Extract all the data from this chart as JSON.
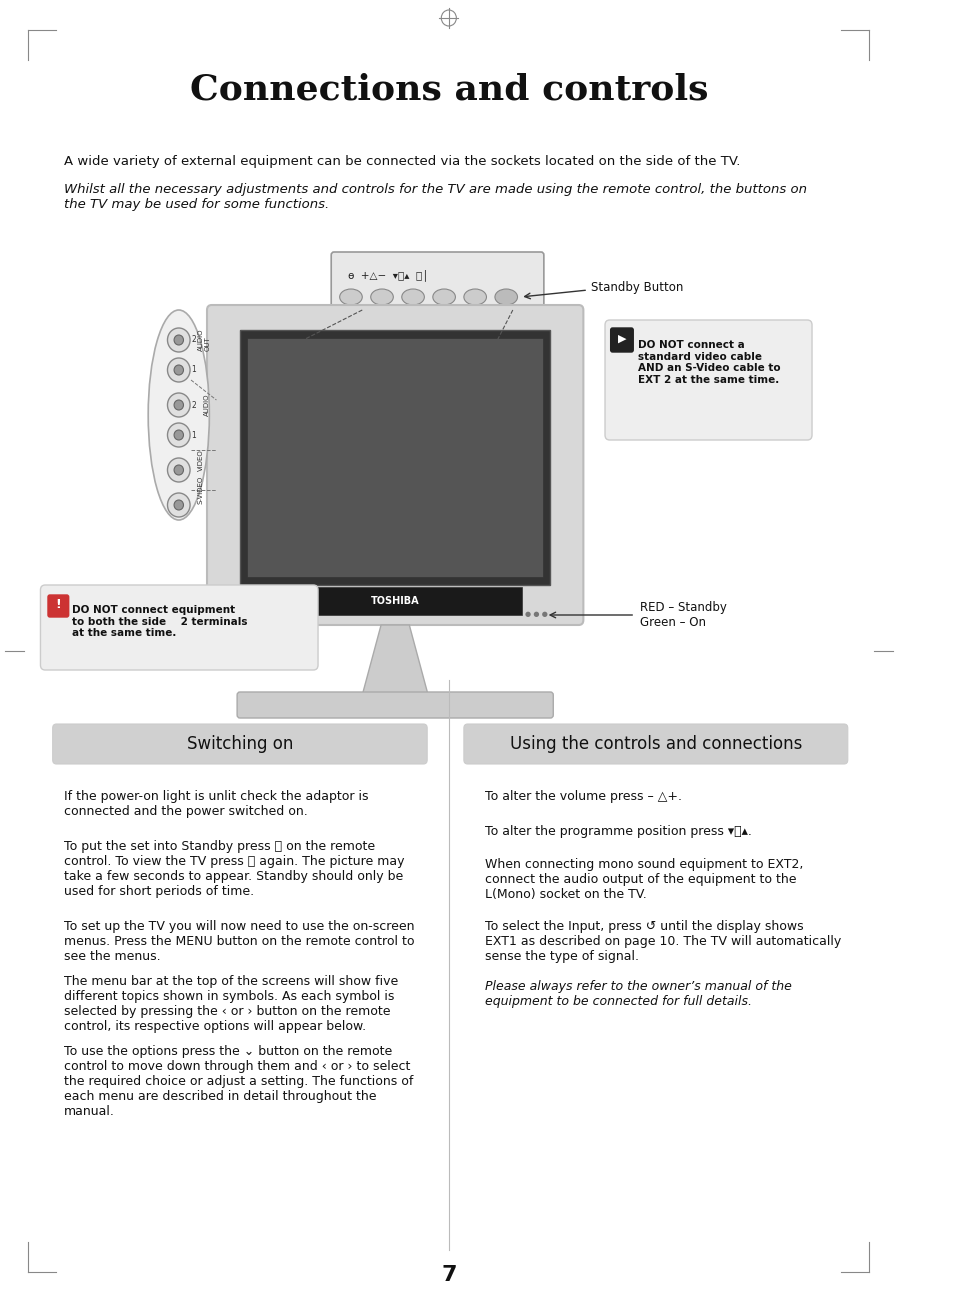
{
  "title": "Connections and controls",
  "bg_color": "#ffffff",
  "page_number": "7",
  "para1": "A wide variety of external equipment can be connected via the sockets located on the side of the TV.",
  "para2": "Whilst all the necessary adjustments and controls for the TV are made using the remote control, the buttons on\nthe TV may be used for some functions.",
  "standby_label": "Standby Button",
  "red_green_label": "RED – Standby\nGreen – On",
  "warning1_text": "DO NOT connect a\nstandard video cable\nAND an S-Video cable to\nEXT 2 at the same time.",
  "warning2_text": "DO NOT connect equipment\nto both the side    2 terminals\nat the same time.",
  "section1_title": "Switching on",
  "section2_title": "Using the controls and connections",
  "s1_p1": "If the power-on light is unlit check the adaptor is\nconnected and the power switched on.",
  "s1_p2": "To put the set into Standby press ⏽ on the remote\ncontrol. To view the TV press ⏽ again. The picture may\ntake a few seconds to appear. Standby should only be\nused for short periods of time.",
  "s1_p3": "To set up the TV you will now need to use the on-screen\nmenus. Press the MENU button on the remote control to\nsee the menus.",
  "s1_p4": "The menu bar at the top of the screens will show five\ndifferent topics shown in symbols. As each symbol is\nselected by pressing the ‹ or › button on the remote\ncontrol, its respective options will appear below.",
  "s1_p5": "To use the options press the ⌄ button on the remote\ncontrol to move down through them and ‹ or › to select\nthe required choice or adjust a setting. The functions of\neach menu are described in detail throughout the\nmanual.",
  "s2_p1": "To alter the volume press – △+.",
  "s2_p2": "To alter the programme position press ▾ⓟ▴.",
  "s2_p3": "When connecting mono sound equipment to EXT2,\nconnect the audio output of the equipment to the\nL(Mono) socket on the TV.",
  "s2_p4": "To select the Input, press ↺ until the display shows\nEXT1 as described on page 10. The TV will automatically\nsense the type of signal.",
  "s2_p5": "Please always refer to the owner’s manual of the\nequipment to be connected for full details.",
  "toshiba_brand": "TOSHIBA"
}
